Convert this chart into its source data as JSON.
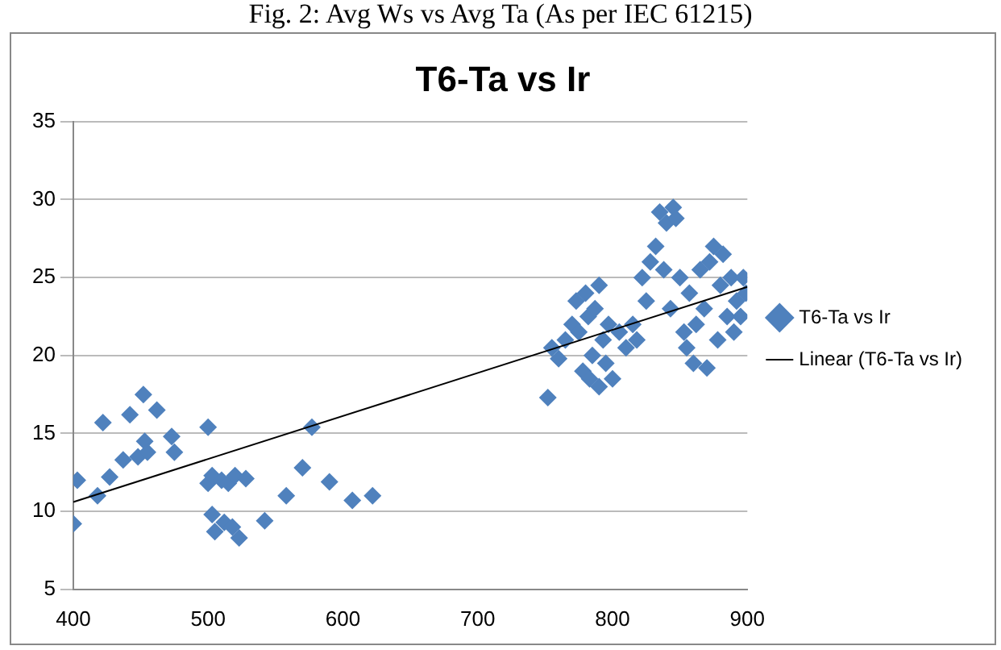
{
  "chart_data": {
    "type": "scatter",
    "title": "T6-Ta vs Ir",
    "annotations": [
      "Fig. 2: Avg Ws vs Avg Ta (As per IEC 61215)"
    ],
    "xlim": [
      400,
      900
    ],
    "xticks": [
      400,
      500,
      600,
      700,
      800,
      900
    ],
    "ylim": [
      5,
      35
    ],
    "yticks": [
      5,
      10,
      15,
      20,
      25,
      30,
      35
    ],
    "grid": "y",
    "legend": "right",
    "marker": "diamond",
    "series": [
      {
        "name": "T6-Ta vs Ir",
        "color": "#4f81bd",
        "x": [
          400,
          403,
          418,
          422,
          427,
          437,
          442,
          448,
          452,
          453,
          455,
          462,
          473,
          475,
          500,
          500,
          503,
          503,
          505,
          510,
          512,
          515,
          518,
          520,
          523,
          528,
          542,
          558,
          570,
          577,
          590,
          607,
          622,
          752,
          755,
          760,
          765,
          770,
          773,
          775,
          778,
          780,
          782,
          783,
          785,
          787,
          790,
          790,
          793,
          795,
          797,
          800,
          805,
          810,
          815,
          818,
          822,
          825,
          828,
          832,
          835,
          838,
          840,
          843,
          845,
          847,
          850,
          853,
          855,
          857,
          860,
          862,
          865,
          868,
          870,
          872,
          875,
          878,
          880,
          882,
          885,
          888,
          890,
          892,
          895,
          897,
          899
        ],
        "values": [
          9.2,
          12,
          11,
          15.7,
          12.2,
          13.3,
          16.2,
          13.5,
          17.5,
          14.5,
          13.8,
          16.5,
          14.8,
          13.8,
          15.4,
          11.8,
          12.3,
          9.8,
          8.7,
          12,
          9.3,
          11.8,
          9,
          12.3,
          8.3,
          12.1,
          9.4,
          11,
          12.8,
          15.4,
          11.9,
          10.7,
          11,
          17.3,
          20.5,
          19.8,
          21,
          22,
          23.5,
          21.5,
          19,
          24,
          22.5,
          18.5,
          20,
          23,
          24.5,
          18,
          21,
          19.5,
          22,
          18.5,
          21.5,
          20.5,
          22,
          21,
          25,
          23.5,
          26,
          27,
          29.2,
          25.5,
          28.5,
          23,
          29.5,
          28.8,
          25,
          21.5,
          20.5,
          24,
          19.5,
          22,
          25.5,
          23,
          19.2,
          26,
          27,
          21,
          24.5,
          26.5,
          22.5,
          25,
          21.5,
          23.5,
          22.5,
          25,
          24
        ]
      },
      {
        "name": "Linear (T6-Ta vs Ir)",
        "type": "line",
        "color": "#000000",
        "marker": "none",
        "x": [
          400,
          900
        ],
        "values": [
          10.6,
          24.4
        ]
      }
    ]
  }
}
